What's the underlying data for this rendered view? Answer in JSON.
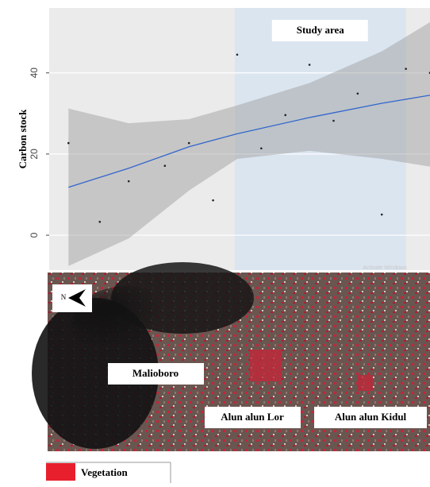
{
  "chart_data": {
    "type": "scatter",
    "y_label": "Carbon stock",
    "xlim": [
      -0.8,
      15
    ],
    "ylim": [
      -8.6,
      56
    ],
    "yticks": [
      0,
      20,
      40
    ],
    "grid": true,
    "points": {
      "color": "#222222",
      "x": [
        0,
        1.3,
        2.5,
        4,
        5,
        6,
        7,
        8,
        9,
        10,
        11,
        12,
        13,
        14,
        15
      ],
      "y": [
        22.7,
        3.3,
        13.3,
        17.1,
        22.7,
        8.6,
        44.5,
        21.4,
        29.6,
        42.0,
        28.2,
        34.9,
        5.1,
        41.0,
        40.0
      ]
    },
    "fit": {
      "color": "#3366cc",
      "x": [
        0,
        2.5,
        5,
        7,
        10,
        13,
        15
      ],
      "y": [
        11.8,
        16.5,
        21.8,
        25,
        29,
        32.5,
        34.5
      ]
    },
    "band": {
      "color": "#9a9a9a",
      "x": [
        0,
        2.5,
        5,
        7,
        10,
        13,
        15
      ],
      "lower": [
        -7.6,
        -0.8,
        11,
        18.8,
        20.8,
        18.8,
        16.9
      ],
      "upper": [
        31.2,
        27.6,
        28.6,
        32,
        37.5,
        45.3,
        52.5
      ]
    },
    "highlight": {
      "xlim": [
        6.9,
        14
      ],
      "label": "Study area",
      "color": "#dbe5f0"
    },
    "watermark": "Activate Windows"
  },
  "map": {
    "north": "N",
    "labels": [
      "Malioboro",
      "Alun alun Lor",
      "Alun alun Kidul"
    ]
  },
  "legend": {
    "label": "Vegetation",
    "color": "#e8202e"
  }
}
